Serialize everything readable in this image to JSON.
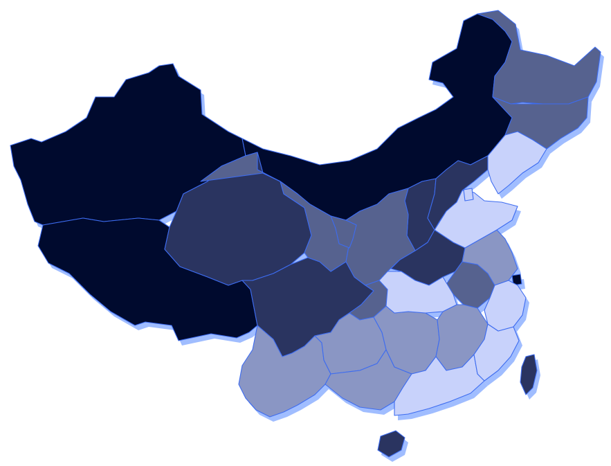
{
  "map": {
    "type": "choropleth",
    "country": "China",
    "levels": {
      "darkest": "#000a2e",
      "dark": "#2a3460",
      "medium": "#56628f",
      "light": "#8a96c4",
      "lightest": "#c8d2fb"
    },
    "border_color": "#3d6cf0",
    "shadow_color": "#8fb1ff",
    "regions": [
      {
        "id": "xinjiang",
        "level": "darkest"
      },
      {
        "id": "tibet",
        "level": "darkest"
      },
      {
        "id": "inner-mongolia",
        "level": "darkest"
      },
      {
        "id": "beijing",
        "level": "darkest"
      },
      {
        "id": "shanghai",
        "level": "darkest"
      },
      {
        "id": "qinghai",
        "level": "dark"
      },
      {
        "id": "sichuan",
        "level": "dark"
      },
      {
        "id": "henan",
        "level": "dark"
      },
      {
        "id": "shanxi",
        "level": "dark"
      },
      {
        "id": "hebei",
        "level": "dark"
      },
      {
        "id": "taiwan",
        "level": "dark"
      },
      {
        "id": "hainan",
        "level": "dark"
      },
      {
        "id": "gansu",
        "level": "medium"
      },
      {
        "id": "heilongjiang",
        "level": "medium"
      },
      {
        "id": "jilin",
        "level": "medium"
      },
      {
        "id": "shaanxi",
        "level": "medium"
      },
      {
        "id": "ningxia",
        "level": "medium"
      },
      {
        "id": "anhui",
        "level": "medium"
      },
      {
        "id": "chongqing",
        "level": "medium"
      },
      {
        "id": "yunnan",
        "level": "light"
      },
      {
        "id": "guizhou",
        "level": "light"
      },
      {
        "id": "guangxi",
        "level": "light"
      },
      {
        "id": "hunan",
        "level": "light"
      },
      {
        "id": "jiangxi",
        "level": "light"
      },
      {
        "id": "jiangsu",
        "level": "light"
      },
      {
        "id": "liaoning",
        "level": "lightest"
      },
      {
        "id": "shandong",
        "level": "lightest"
      },
      {
        "id": "hubei",
        "level": "lightest"
      },
      {
        "id": "guangdong",
        "level": "lightest"
      },
      {
        "id": "fujian",
        "level": "lightest"
      },
      {
        "id": "zhejiang",
        "level": "lightest"
      },
      {
        "id": "tianjin",
        "level": "lightest"
      }
    ]
  }
}
